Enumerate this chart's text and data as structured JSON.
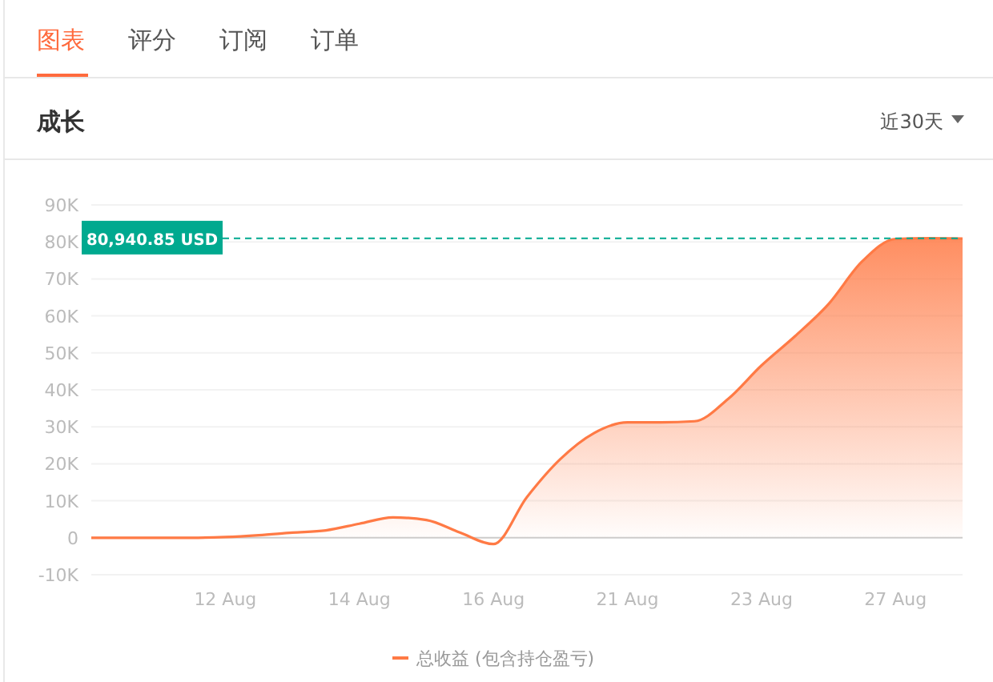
{
  "chart_data": {
    "type": "area",
    "title": "成长",
    "annotations": [
      "图表",
      "评分",
      "订阅",
      "订单",
      "近30天"
    ],
    "categories": [
      null,
      null,
      null,
      null,
      "12 Aug",
      null,
      null,
      null,
      "14 Aug",
      null,
      null,
      null,
      "16 Aug",
      null,
      null,
      null,
      "21 Aug",
      null,
      null,
      null,
      "23 Aug",
      null,
      null,
      null,
      "27 Aug",
      null,
      null
    ],
    "series": [
      {
        "name": "总收益 (包含持仓盈亏)",
        "color": "#ff7a45",
        "values": [
          0,
          0,
          0,
          0,
          200,
          700,
          1400,
          2000,
          3800,
          5500,
          4800,
          1400,
          -1700,
          11000,
          21300,
          28300,
          31200,
          31200,
          31500,
          37500,
          46600,
          54500,
          63200,
          74700,
          80800,
          81000,
          80900
        ]
      }
    ],
    "ylim": [
      -10000,
      90000
    ],
    "yticks": [
      {
        "value": -10000,
        "label": "-10K"
      },
      0,
      {
        "value": 10000,
        "label": "10K"
      },
      {
        "value": 20000,
        "label": "20K"
      },
      {
        "value": 30000,
        "label": "30K"
      },
      {
        "value": 40000,
        "label": "40K"
      },
      {
        "value": 50000,
        "label": "50K"
      },
      {
        "value": 60000,
        "label": "60K"
      },
      {
        "value": 70000,
        "label": "70K"
      },
      {
        "value": 80000,
        "label": "80K"
      },
      {
        "value": 90000,
        "label": "90K"
      }
    ],
    "ref_lines": [
      {
        "axis": "y",
        "value": 80940.85,
        "label": "80,940.85 USD",
        "color": "#00a98f",
        "line_style": "dashed"
      }
    ],
    "grid": "y",
    "legend": "bottom"
  }
}
